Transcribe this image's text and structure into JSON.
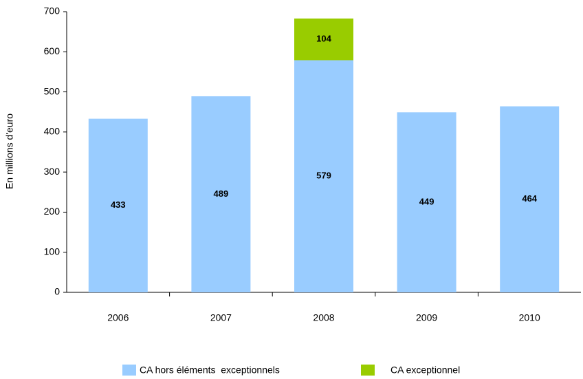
{
  "chart_data": {
    "type": "stacked_bar",
    "y_axis_label": "En millions d'euro",
    "categories": [
      "2006",
      "2007",
      "2008",
      "2009",
      "2010"
    ],
    "series": [
      {
        "name": "CA hors éléments  exceptionnels",
        "color": "#99ccff",
        "values": [
          433,
          489,
          579,
          449,
          464
        ]
      },
      {
        "name": "CA exceptionnel",
        "color": "#99cc00",
        "values": [
          null,
          null,
          104,
          null,
          null
        ]
      }
    ],
    "ylim": [
      0,
      700
    ],
    "yticks": [
      0,
      100,
      200,
      300,
      400,
      500,
      600,
      700
    ]
  }
}
